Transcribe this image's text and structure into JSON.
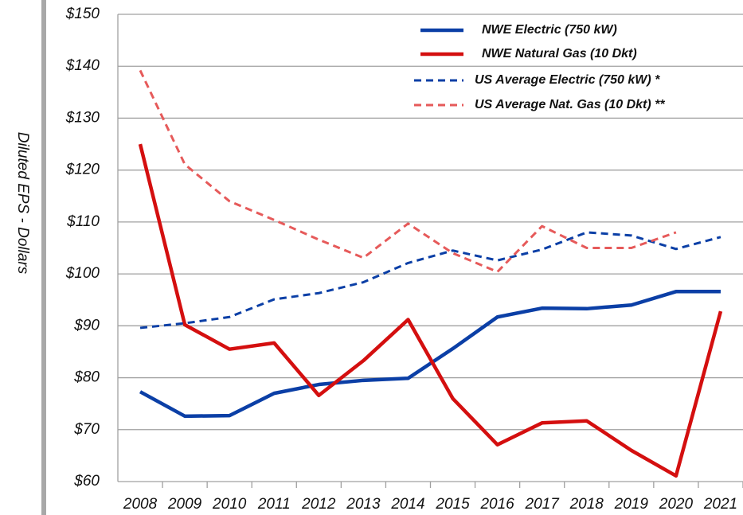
{
  "chart_data": {
    "type": "line",
    "y_label": "Diluted EPS - Dollars",
    "categories": [
      "2008",
      "2009",
      "2010",
      "2011",
      "2012",
      "2013",
      "2014",
      "2015",
      "2016",
      "2017",
      "2018",
      "2019",
      "2020",
      "2021"
    ],
    "series": [
      {
        "name": "NWE Electric (750 kW)",
        "color": "#0b3fa6",
        "dash": false,
        "values": [
          77.3,
          72.6,
          72.7,
          77.0,
          78.7,
          79.5,
          79.9,
          85.6,
          91.7,
          93.4,
          93.3,
          94.0,
          96.6,
          96.6
        ]
      },
      {
        "name": "NWE Natural Gas (10 Dkt)",
        "color": "#d40f0f",
        "dash": false,
        "values": [
          125,
          90.2,
          85.5,
          86.7,
          76.6,
          83.3,
          91.2,
          76.0,
          67.1,
          71.3,
          71.7,
          66.0,
          61.1,
          92.8
        ]
      },
      {
        "name": "US Average Electric (750 kW) *",
        "color": "#0b3fa6",
        "dash": true,
        "values": [
          89.6,
          90.5,
          91.7,
          95.1,
          96.3,
          98.4,
          102.1,
          104.5,
          102.6,
          104.7,
          108.0,
          107.4,
          104.8,
          107.1
        ]
      },
      {
        "name": "US Average Nat. Gas (10 Dkt) **",
        "color": "#e65a5a",
        "dash": true,
        "values": [
          139.2,
          121.1,
          114.0,
          110.4,
          106.6,
          103.1,
          109.7,
          104.0,
          100.4,
          109.2,
          105.0,
          105.0,
          108.0,
          null
        ]
      }
    ],
    "ylim": [
      60,
      150
    ],
    "yticks": [
      {
        "value": 60,
        "label": "$60"
      },
      {
        "value": 70,
        "label": "$70"
      },
      {
        "value": 80,
        "label": "$80"
      },
      {
        "value": 90,
        "label": "$90"
      },
      {
        "value": 100,
        "label": "$100"
      },
      {
        "value": 110,
        "label": "$110"
      },
      {
        "value": 120,
        "label": "$120"
      },
      {
        "value": 130,
        "label": "$130"
      },
      {
        "value": 140,
        "label": "$140"
      },
      {
        "value": 150,
        "label": "$150"
      }
    ],
    "grid": true,
    "legend": "top-right"
  }
}
